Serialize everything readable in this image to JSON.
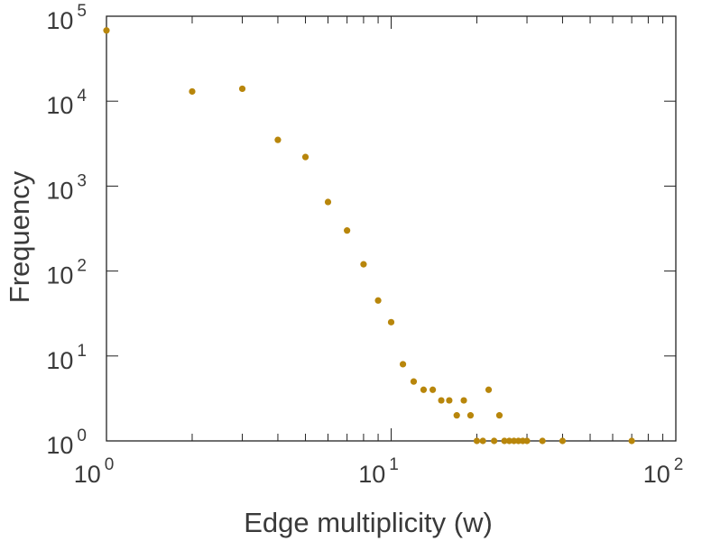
{
  "chart_data": {
    "type": "scatter",
    "xlabel": "Edge multiplicity (w)",
    "ylabel": "Frequency",
    "xscale": "log",
    "yscale": "log",
    "xlim": [
      1,
      100
    ],
    "ylim": [
      1,
      100000
    ],
    "grid": false,
    "legend": "none",
    "marker_color": "#B8860B",
    "x_ticks": [
      {
        "base": "10",
        "exp": "0"
      },
      {
        "base": "10",
        "exp": "1"
      },
      {
        "base": "10",
        "exp": "2"
      }
    ],
    "y_ticks": [
      {
        "base": "10",
        "exp": "0"
      },
      {
        "base": "10",
        "exp": "1"
      },
      {
        "base": "10",
        "exp": "2"
      },
      {
        "base": "10",
        "exp": "3"
      },
      {
        "base": "10",
        "exp": "4"
      },
      {
        "base": "10",
        "exp": "5"
      }
    ],
    "x": [
      1,
      2,
      3,
      4,
      5,
      6,
      7,
      8,
      9,
      10,
      11,
      12,
      13,
      14,
      15,
      16,
      17,
      18,
      19,
      20,
      21,
      22,
      23,
      24,
      25,
      26,
      27,
      28,
      29,
      30,
      34,
      40,
      70
    ],
    "y": [
      68000,
      13000,
      14000,
      3500,
      2200,
      650,
      300,
      120,
      45,
      25,
      8,
      5,
      4,
      4,
      3,
      3,
      2,
      3,
      2,
      1,
      1,
      4,
      1,
      2,
      1,
      1,
      1,
      1,
      1,
      1,
      1,
      1,
      1
    ]
  }
}
